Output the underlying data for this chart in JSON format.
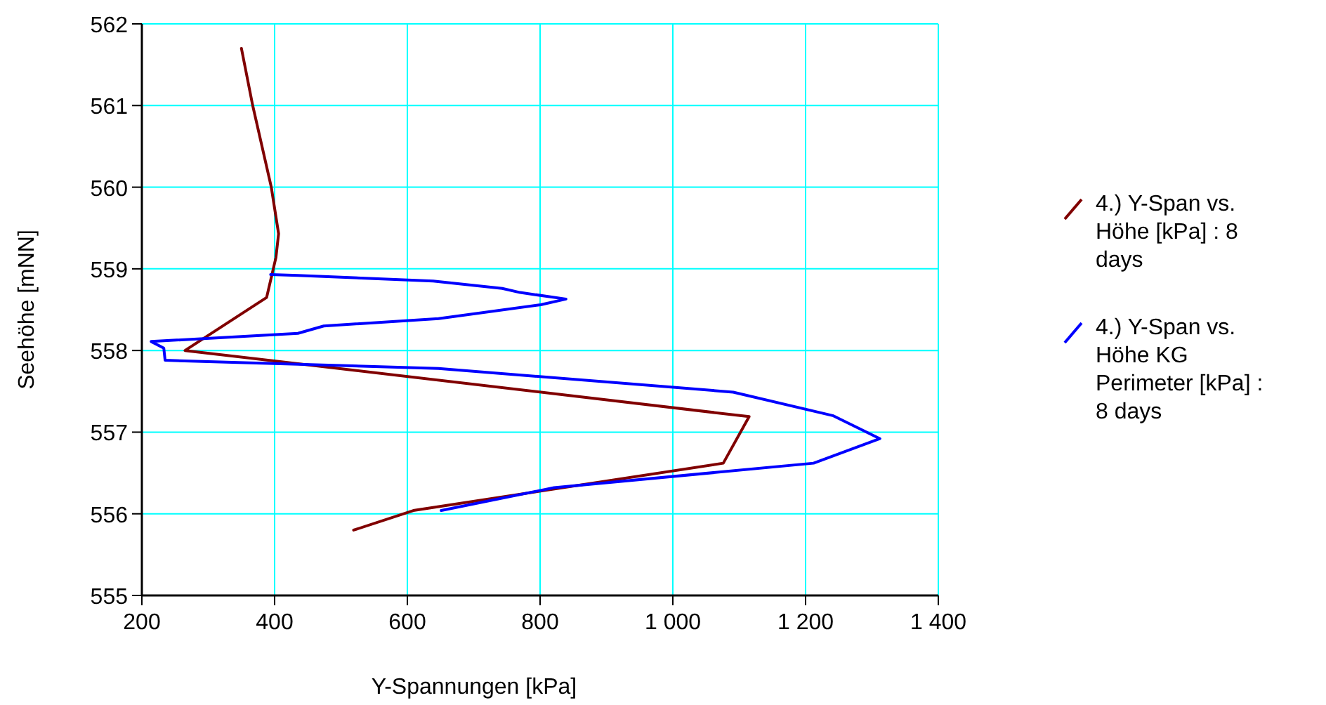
{
  "chart_data": {
    "type": "line",
    "xlabel": "Y-Spannungen [kPa]",
    "ylabel": "Seehöhe [mNN]",
    "xlim": [
      200,
      1400
    ],
    "ylim": [
      555,
      562
    ],
    "xticks": [
      200,
      400,
      600,
      800,
      {
        "value": 1000,
        "label": "1 000"
      },
      {
        "value": 1200,
        "label": "1 200"
      },
      {
        "value": 1400,
        "label": "1 400"
      }
    ],
    "yticks": [
      555,
      556,
      557,
      558,
      559,
      560,
      561,
      562
    ],
    "grid": true,
    "legend": "right",
    "marker": "none",
    "line_style": "solid",
    "series": [
      {
        "name": "4.) Y-Span vs. Höhe [kPa] : 8 days",
        "color": "#800000",
        "x": [
          350,
          367,
          395,
          406,
          402,
          388,
          265,
          1115,
          1076,
          609,
          519
        ],
        "values": [
          561.7,
          561.0,
          560.0,
          559.43,
          559.14,
          558.65,
          558.0,
          557.19,
          556.62,
          556.04,
          555.8
        ]
      },
      {
        "name": "4.) Y-Span vs. Höhe KG Perimeter [kPa] : 8 days",
        "color": "#0000ff",
        "x": [
          394,
          435,
          639,
          743,
          770,
          839,
          801,
          647,
          474,
          435,
          214,
          233,
          235,
          647,
          1091,
          1242,
          1312,
          1212,
          821,
          651
        ],
        "values": [
          558.93,
          558.92,
          558.85,
          558.76,
          558.71,
          558.63,
          558.56,
          558.39,
          558.3,
          558.21,
          558.11,
          558.03,
          557.88,
          557.78,
          557.49,
          557.2,
          556.92,
          556.62,
          556.32,
          556.04
        ]
      }
    ]
  }
}
